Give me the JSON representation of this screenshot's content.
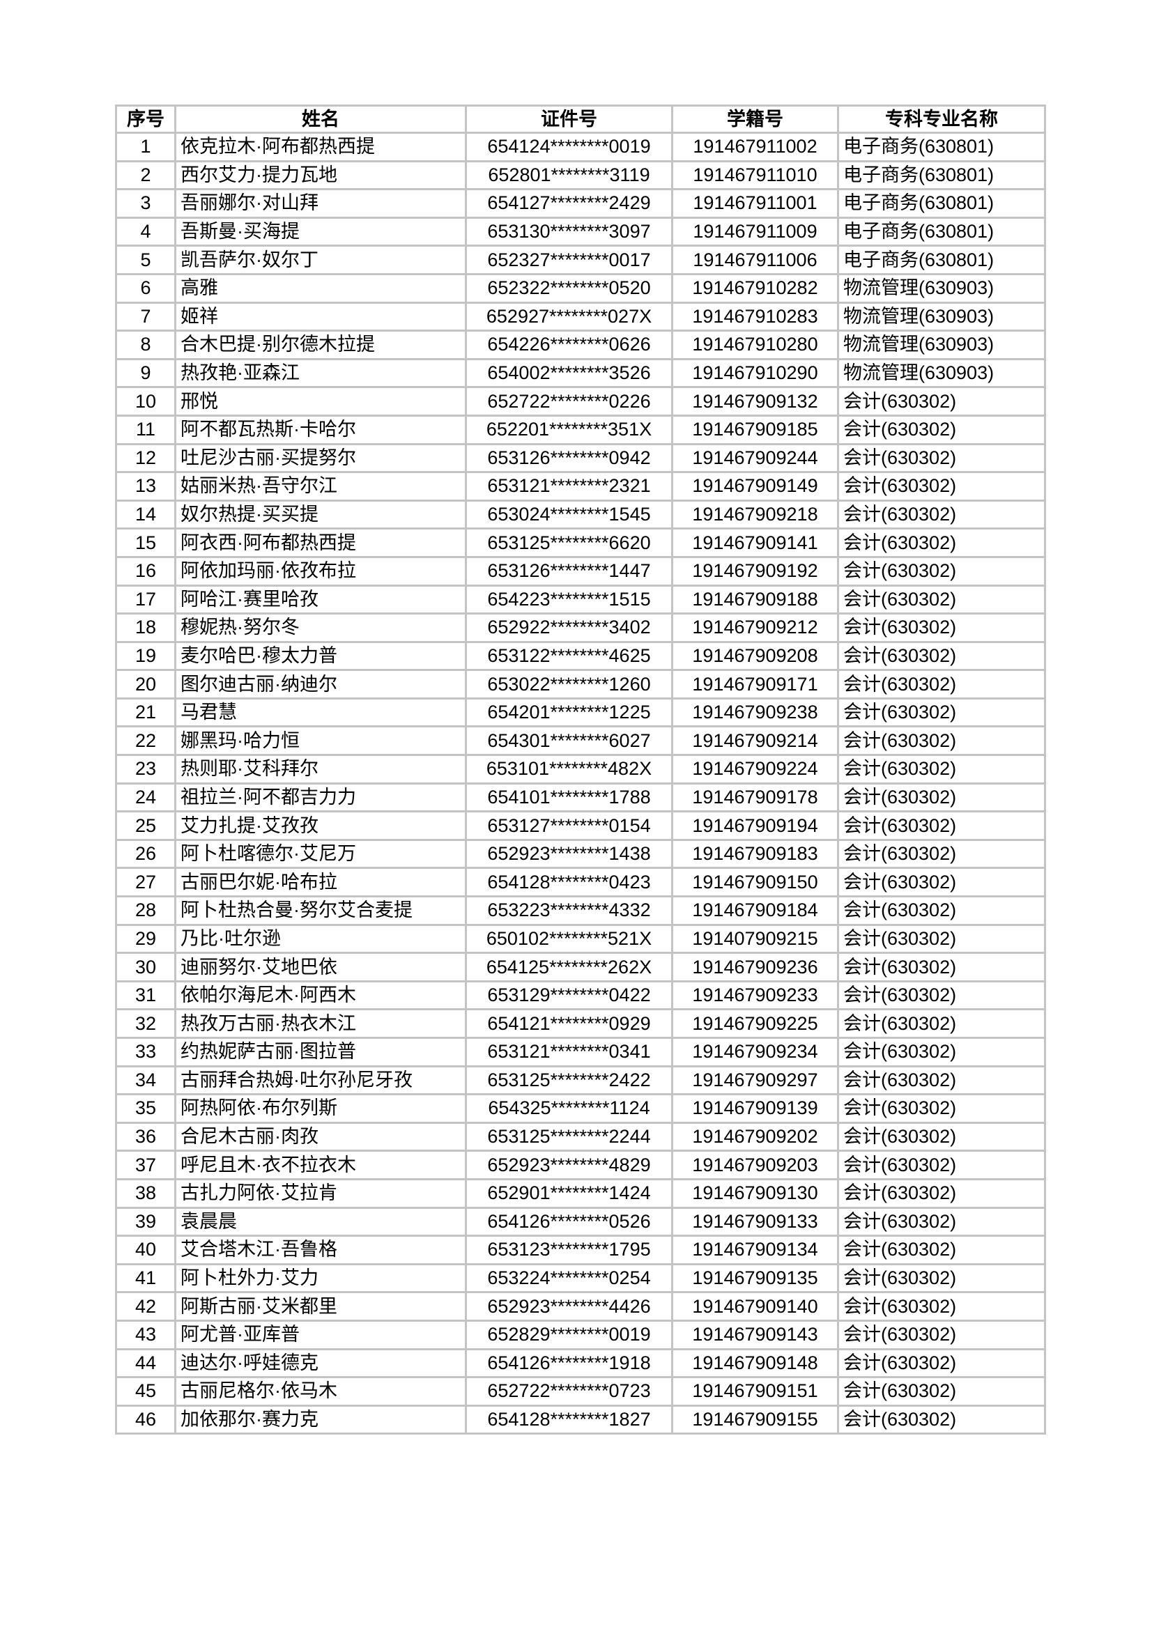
{
  "table": {
    "headers": [
      "序号",
      "姓名",
      "证件号",
      "学籍号",
      "专科专业名称"
    ],
    "rows": [
      [
        "1",
        "依克拉木·阿布都热西提",
        "654124********0019",
        "191467911002",
        "电子商务(630801)"
      ],
      [
        "2",
        "西尔艾力·提力瓦地",
        "652801********3119",
        "191467911010",
        "电子商务(630801)"
      ],
      [
        "3",
        "吾丽娜尔·对山拜",
        "654127********2429",
        "191467911001",
        "电子商务(630801)"
      ],
      [
        "4",
        "吾斯曼·买海提",
        "653130********3097",
        "191467911009",
        "电子商务(630801)"
      ],
      [
        "5",
        "凯吾萨尔·奴尔丁",
        "652327********0017",
        "191467911006",
        "电子商务(630801)"
      ],
      [
        "6",
        "高雅",
        "652322********0520",
        "191467910282",
        "物流管理(630903)"
      ],
      [
        "7",
        "姬祥",
        "652927********027X",
        "191467910283",
        "物流管理(630903)"
      ],
      [
        "8",
        "合木巴提·别尔德木拉提",
        "654226********0626",
        "191467910280",
        "物流管理(630903)"
      ],
      [
        "9",
        "热孜艳·亚森江",
        "654002********3526",
        "191467910290",
        "物流管理(630903)"
      ],
      [
        "10",
        "邢悦",
        "652722********0226",
        "191467909132",
        "会计(630302)"
      ],
      [
        "11",
        "阿不都瓦热斯·卡哈尔",
        "652201********351X",
        "191467909185",
        "会计(630302)"
      ],
      [
        "12",
        "吐尼沙古丽·买提努尔",
        "653126********0942",
        "191467909244",
        "会计(630302)"
      ],
      [
        "13",
        "姑丽米热·吾守尔江",
        "653121********2321",
        "191467909149",
        "会计(630302)"
      ],
      [
        "14",
        "奴尔热提·买买提",
        "653024********1545",
        "191467909218",
        "会计(630302)"
      ],
      [
        "15",
        "阿衣西·阿布都热西提",
        "653125********6620",
        "191467909141",
        "会计(630302)"
      ],
      [
        "16",
        "阿依加玛丽·依孜布拉",
        "653126********1447",
        "191467909192",
        "会计(630302)"
      ],
      [
        "17",
        "阿哈江·赛里哈孜",
        "654223********1515",
        "191467909188",
        "会计(630302)"
      ],
      [
        "18",
        "穆妮热·努尔冬",
        "652922********3402",
        "191467909212",
        "会计(630302)"
      ],
      [
        "19",
        "麦尔哈巴·穆太力普",
        "653122********4625",
        "191467909208",
        "会计(630302)"
      ],
      [
        "20",
        "图尔迪古丽·纳迪尔",
        "653022********1260",
        "191467909171",
        "会计(630302)"
      ],
      [
        "21",
        "马君慧",
        "654201********1225",
        "191467909238",
        "会计(630302)"
      ],
      [
        "22",
        "娜黑玛·哈力恒",
        "654301********6027",
        "191467909214",
        "会计(630302)"
      ],
      [
        "23",
        "热则耶·艾科拜尔",
        "653101********482X",
        "191467909224",
        "会计(630302)"
      ],
      [
        "24",
        "祖拉兰·阿不都吉力力",
        "654101********1788",
        "191467909178",
        "会计(630302)"
      ],
      [
        "25",
        "艾力扎提·艾孜孜",
        "653127********0154",
        "191467909194",
        "会计(630302)"
      ],
      [
        "26",
        "阿卜杜喀德尔·艾尼万",
        "652923********1438",
        "191467909183",
        "会计(630302)"
      ],
      [
        "27",
        "古丽巴尔妮·哈布拉",
        "654128********0423",
        "191467909150",
        "会计(630302)"
      ],
      [
        "28",
        "阿卜杜热合曼·努尔艾合麦提",
        "653223********4332",
        "191467909184",
        "会计(630302)"
      ],
      [
        "29",
        "乃比·吐尔逊",
        "650102********521X",
        "191407909215",
        "会计(630302)"
      ],
      [
        "30",
        "迪丽努尔·艾地巴依",
        "654125********262X",
        "191467909236",
        "会计(630302)"
      ],
      [
        "31",
        "依帕尔海尼木·阿西木",
        "653129********0422",
        "191467909233",
        "会计(630302)"
      ],
      [
        "32",
        "热孜万古丽·热衣木江",
        "654121********0929",
        "191467909225",
        "会计(630302)"
      ],
      [
        "33",
        "约热妮萨古丽·图拉普",
        "653121********0341",
        "191467909234",
        "会计(630302)"
      ],
      [
        "34",
        "古丽拜合热姆·吐尔孙尼牙孜",
        "653125********2422",
        "191467909297",
        "会计(630302)"
      ],
      [
        "35",
        "阿热阿依·布尔列斯",
        "654325********1124",
        "191467909139",
        "会计(630302)"
      ],
      [
        "36",
        "合尼木古丽·肉孜",
        "653125********2244",
        "191467909202",
        "会计(630302)"
      ],
      [
        "37",
        "呼尼且木·衣不拉衣木",
        "652923********4829",
        "191467909203",
        "会计(630302)"
      ],
      [
        "38",
        "古扎力阿依·艾拉肯",
        "652901********1424",
        "191467909130",
        "会计(630302)"
      ],
      [
        "39",
        "袁晨晨",
        "654126********0526",
        "191467909133",
        "会计(630302)"
      ],
      [
        "40",
        "艾合塔木江·吾鲁格",
        "653123********1795",
        "191467909134",
        "会计(630302)"
      ],
      [
        "41",
        "阿卜杜外力·艾力",
        "653224********0254",
        "191467909135",
        "会计(630302)"
      ],
      [
        "42",
        "阿斯古丽·艾米都里",
        "652923********4426",
        "191467909140",
        "会计(630302)"
      ],
      [
        "43",
        "阿尤普·亚库普",
        "652829********0019",
        "191467909143",
        "会计(630302)"
      ],
      [
        "44",
        "迪达尔·呼娃德克",
        "654126********1918",
        "191467909148",
        "会计(630302)"
      ],
      [
        "45",
        "古丽尼格尔·依马木",
        "652722********0723",
        "191467909151",
        "会计(630302)"
      ],
      [
        "46",
        "加依那尔·赛力克",
        "654128********1827",
        "191467909155",
        "会计(630302)"
      ]
    ]
  }
}
